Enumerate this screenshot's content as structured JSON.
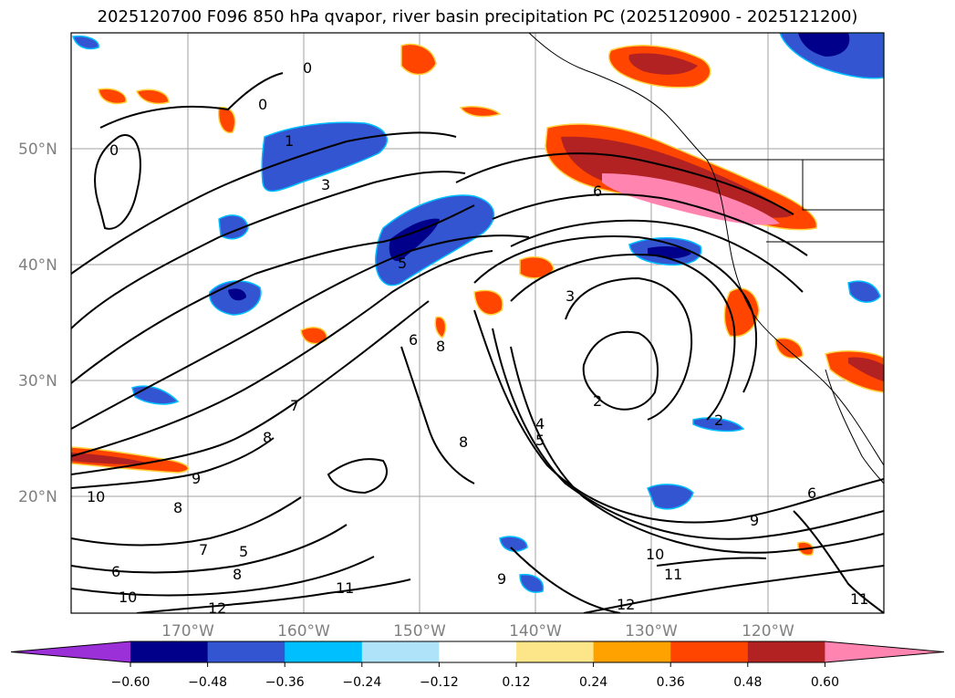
{
  "title": "2025120700 F096 850 hPa qvapor, river basin precipitation PC (2025120900 - 2025121200)",
  "lat_labels": [
    "50°N",
    "40°N",
    "30°N",
    "20°N"
  ],
  "lon_labels": [
    "170°W",
    "160°W",
    "150°W",
    "140°W",
    "130°W",
    "120°W"
  ],
  "contour_labels": [
    "0",
    "0",
    "0",
    "1",
    "3",
    "5",
    "6",
    "6",
    "7",
    "8",
    "9",
    "10",
    "3",
    "2",
    "2",
    "4",
    "5",
    "8",
    "8",
    "5",
    "7",
    "8",
    "6",
    "10",
    "9",
    "10",
    "11",
    "11",
    "12",
    "12",
    "11",
    "9",
    "6",
    "8"
  ],
  "colorbar": {
    "ticks": [
      "−0.60",
      "−0.48",
      "−0.36",
      "−0.24",
      "−0.12",
      "0.12",
      "0.24",
      "0.36",
      "0.48",
      "0.60"
    ],
    "colors": [
      "#9b30d9",
      "#00008b",
      "#3455d1",
      "#00bfff",
      "#aee3f9",
      "#ffffff",
      "#fde68a",
      "#ffa200",
      "#ff4500",
      "#b22222",
      "#ff85b0"
    ]
  },
  "colors": {
    "neg_strong": "#00008b",
    "neg_mid": "#3455d1",
    "neg_light": "#00bfff",
    "pos_light": "#ffa200",
    "pos_mid": "#ff4500",
    "pos_strong": "#b22222",
    "pos_max": "#ff85b0"
  }
}
